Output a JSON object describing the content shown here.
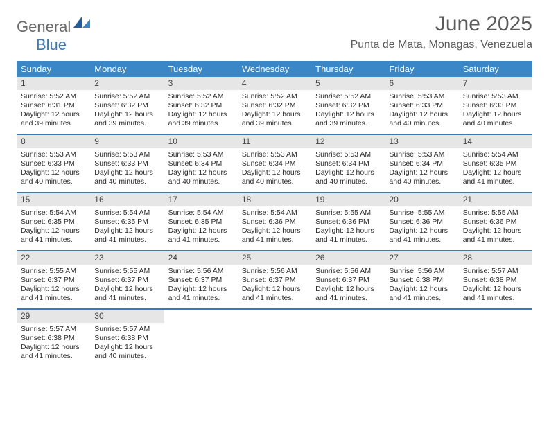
{
  "logo": {
    "part1": "General",
    "part2": "Blue"
  },
  "title": "June 2025",
  "location": "Punta de Mata, Monagas, Venezuela",
  "colors": {
    "header_bg": "#3a87c7",
    "week_border": "#3a7ab8",
    "daynum_bg": "#e6e6e6",
    "text": "#2a2a2a",
    "title_text": "#5a5a5a"
  },
  "day_labels": [
    "Sunday",
    "Monday",
    "Tuesday",
    "Wednesday",
    "Thursday",
    "Friday",
    "Saturday"
  ],
  "weeks": [
    [
      {
        "n": "1",
        "sr": "Sunrise: 5:52 AM",
        "ss": "Sunset: 6:31 PM",
        "d1": "Daylight: 12 hours",
        "d2": "and 39 minutes."
      },
      {
        "n": "2",
        "sr": "Sunrise: 5:52 AM",
        "ss": "Sunset: 6:32 PM",
        "d1": "Daylight: 12 hours",
        "d2": "and 39 minutes."
      },
      {
        "n": "3",
        "sr": "Sunrise: 5:52 AM",
        "ss": "Sunset: 6:32 PM",
        "d1": "Daylight: 12 hours",
        "d2": "and 39 minutes."
      },
      {
        "n": "4",
        "sr": "Sunrise: 5:52 AM",
        "ss": "Sunset: 6:32 PM",
        "d1": "Daylight: 12 hours",
        "d2": "and 39 minutes."
      },
      {
        "n": "5",
        "sr": "Sunrise: 5:52 AM",
        "ss": "Sunset: 6:32 PM",
        "d1": "Daylight: 12 hours",
        "d2": "and 39 minutes."
      },
      {
        "n": "6",
        "sr": "Sunrise: 5:53 AM",
        "ss": "Sunset: 6:33 PM",
        "d1": "Daylight: 12 hours",
        "d2": "and 40 minutes."
      },
      {
        "n": "7",
        "sr": "Sunrise: 5:53 AM",
        "ss": "Sunset: 6:33 PM",
        "d1": "Daylight: 12 hours",
        "d2": "and 40 minutes."
      }
    ],
    [
      {
        "n": "8",
        "sr": "Sunrise: 5:53 AM",
        "ss": "Sunset: 6:33 PM",
        "d1": "Daylight: 12 hours",
        "d2": "and 40 minutes."
      },
      {
        "n": "9",
        "sr": "Sunrise: 5:53 AM",
        "ss": "Sunset: 6:33 PM",
        "d1": "Daylight: 12 hours",
        "d2": "and 40 minutes."
      },
      {
        "n": "10",
        "sr": "Sunrise: 5:53 AM",
        "ss": "Sunset: 6:34 PM",
        "d1": "Daylight: 12 hours",
        "d2": "and 40 minutes."
      },
      {
        "n": "11",
        "sr": "Sunrise: 5:53 AM",
        "ss": "Sunset: 6:34 PM",
        "d1": "Daylight: 12 hours",
        "d2": "and 40 minutes."
      },
      {
        "n": "12",
        "sr": "Sunrise: 5:53 AM",
        "ss": "Sunset: 6:34 PM",
        "d1": "Daylight: 12 hours",
        "d2": "and 40 minutes."
      },
      {
        "n": "13",
        "sr": "Sunrise: 5:53 AM",
        "ss": "Sunset: 6:34 PM",
        "d1": "Daylight: 12 hours",
        "d2": "and 40 minutes."
      },
      {
        "n": "14",
        "sr": "Sunrise: 5:54 AM",
        "ss": "Sunset: 6:35 PM",
        "d1": "Daylight: 12 hours",
        "d2": "and 41 minutes."
      }
    ],
    [
      {
        "n": "15",
        "sr": "Sunrise: 5:54 AM",
        "ss": "Sunset: 6:35 PM",
        "d1": "Daylight: 12 hours",
        "d2": "and 41 minutes."
      },
      {
        "n": "16",
        "sr": "Sunrise: 5:54 AM",
        "ss": "Sunset: 6:35 PM",
        "d1": "Daylight: 12 hours",
        "d2": "and 41 minutes."
      },
      {
        "n": "17",
        "sr": "Sunrise: 5:54 AM",
        "ss": "Sunset: 6:35 PM",
        "d1": "Daylight: 12 hours",
        "d2": "and 41 minutes."
      },
      {
        "n": "18",
        "sr": "Sunrise: 5:54 AM",
        "ss": "Sunset: 6:36 PM",
        "d1": "Daylight: 12 hours",
        "d2": "and 41 minutes."
      },
      {
        "n": "19",
        "sr": "Sunrise: 5:55 AM",
        "ss": "Sunset: 6:36 PM",
        "d1": "Daylight: 12 hours",
        "d2": "and 41 minutes."
      },
      {
        "n": "20",
        "sr": "Sunrise: 5:55 AM",
        "ss": "Sunset: 6:36 PM",
        "d1": "Daylight: 12 hours",
        "d2": "and 41 minutes."
      },
      {
        "n": "21",
        "sr": "Sunrise: 5:55 AM",
        "ss": "Sunset: 6:36 PM",
        "d1": "Daylight: 12 hours",
        "d2": "and 41 minutes."
      }
    ],
    [
      {
        "n": "22",
        "sr": "Sunrise: 5:55 AM",
        "ss": "Sunset: 6:37 PM",
        "d1": "Daylight: 12 hours",
        "d2": "and 41 minutes."
      },
      {
        "n": "23",
        "sr": "Sunrise: 5:55 AM",
        "ss": "Sunset: 6:37 PM",
        "d1": "Daylight: 12 hours",
        "d2": "and 41 minutes."
      },
      {
        "n": "24",
        "sr": "Sunrise: 5:56 AM",
        "ss": "Sunset: 6:37 PM",
        "d1": "Daylight: 12 hours",
        "d2": "and 41 minutes."
      },
      {
        "n": "25",
        "sr": "Sunrise: 5:56 AM",
        "ss": "Sunset: 6:37 PM",
        "d1": "Daylight: 12 hours",
        "d2": "and 41 minutes."
      },
      {
        "n": "26",
        "sr": "Sunrise: 5:56 AM",
        "ss": "Sunset: 6:37 PM",
        "d1": "Daylight: 12 hours",
        "d2": "and 41 minutes."
      },
      {
        "n": "27",
        "sr": "Sunrise: 5:56 AM",
        "ss": "Sunset: 6:38 PM",
        "d1": "Daylight: 12 hours",
        "d2": "and 41 minutes."
      },
      {
        "n": "28",
        "sr": "Sunrise: 5:57 AM",
        "ss": "Sunset: 6:38 PM",
        "d1": "Daylight: 12 hours",
        "d2": "and 41 minutes."
      }
    ],
    [
      {
        "n": "29",
        "sr": "Sunrise: 5:57 AM",
        "ss": "Sunset: 6:38 PM",
        "d1": "Daylight: 12 hours",
        "d2": "and 41 minutes."
      },
      {
        "n": "30",
        "sr": "Sunrise: 5:57 AM",
        "ss": "Sunset: 6:38 PM",
        "d1": "Daylight: 12 hours",
        "d2": "and 40 minutes."
      },
      {
        "empty": true
      },
      {
        "empty": true
      },
      {
        "empty": true
      },
      {
        "empty": true
      },
      {
        "empty": true
      }
    ]
  ]
}
